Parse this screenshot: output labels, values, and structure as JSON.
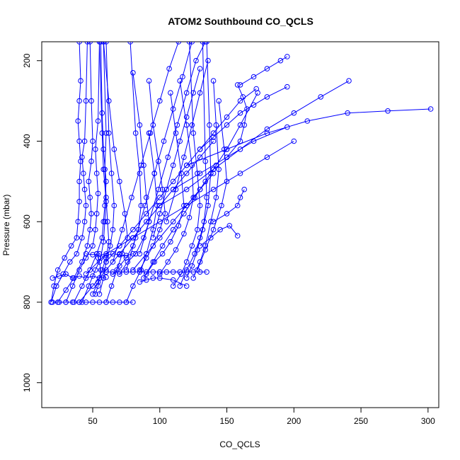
{
  "chart_data": {
    "type": "line",
    "title": "ATOM2 Southbound CO_QCLS",
    "xlabel": "CO_QCLS",
    "ylabel": "Pressure (mbar)",
    "xlim": [
      12,
      308
    ],
    "ylim": [
      1062,
      153
    ],
    "y_reversed": true,
    "x_ticks": [
      50,
      100,
      150,
      200,
      250,
      300
    ],
    "y_ticks": [
      200,
      400,
      600,
      800,
      1000
    ],
    "grid": false,
    "legend": "none",
    "line_color": "#0000ff",
    "marker": "open-circle",
    "series": [
      {
        "x": [
          19,
          21,
          24,
          29,
          34,
          38,
          39,
          40,
          40,
          41,
          40,
          39,
          40,
          41,
          40
        ],
        "y": [
          800,
          760,
          720,
          690,
          660,
          640,
          600,
          550,
          500,
          450,
          400,
          350,
          300,
          250,
          153
        ]
      },
      {
        "x": [
          19,
          23,
          28,
          33,
          38,
          42,
          44,
          45,
          44,
          43,
          42,
          44,
          45,
          46
        ],
        "y": [
          800,
          760,
          730,
          700,
          680,
          640,
          600,
          560,
          520,
          480,
          440,
          400,
          300,
          153
        ]
      },
      {
        "x": [
          24,
          30,
          36,
          42,
          46,
          48,
          49,
          48,
          47,
          49,
          50,
          49,
          48
        ],
        "y": [
          800,
          770,
          740,
          700,
          660,
          620,
          580,
          540,
          500,
          450,
          400,
          300,
          153
        ]
      },
      {
        "x": [
          30,
          35,
          40,
          45,
          50,
          52,
          53,
          54,
          53,
          52,
          54,
          55
        ],
        "y": [
          800,
          760,
          720,
          690,
          660,
          620,
          580,
          530,
          480,
          420,
          350,
          153
        ]
      },
      {
        "x": [
          36,
          42,
          48,
          53,
          57,
          58,
          59,
          60,
          58,
          57,
          56
        ],
        "y": [
          800,
          760,
          720,
          680,
          640,
          600,
          560,
          500,
          420,
          330,
          153
        ]
      },
      {
        "x": [
          42,
          47,
          52,
          56,
          58,
          59,
          60,
          58,
          57,
          55
        ],
        "y": [
          800,
          760,
          720,
          690,
          650,
          600,
          550,
          470,
          380,
          153
        ]
      },
      {
        "x": [
          50,
          54,
          57,
          60,
          62,
          61,
          60,
          59,
          60,
          58
        ],
        "y": [
          780,
          750,
          720,
          690,
          650,
          600,
          540,
          470,
          380,
          153
        ]
      },
      {
        "x": [
          55,
          58,
          60,
          63,
          65,
          66,
          64,
          62,
          60
        ],
        "y": [
          780,
          740,
          700,
          660,
          620,
          560,
          480,
          380,
          153
        ]
      },
      {
        "x": [
          60,
          64,
          68,
          72,
          76,
          74,
          70,
          66,
          62,
          58
        ],
        "y": [
          800,
          760,
          720,
          680,
          640,
          580,
          500,
          420,
          300,
          153
        ]
      },
      {
        "x": [
          65,
          70,
          75,
          80,
          84,
          86,
          85,
          82,
          78
        ],
        "y": [
          730,
          710,
          690,
          660,
          620,
          560,
          480,
          380,
          153
        ]
      },
      {
        "x": [
          70,
          76,
          82,
          88,
          92,
          90,
          88,
          85,
          80
        ],
        "y": [
          730,
          700,
          680,
          640,
          600,
          540,
          460,
          360,
          230
        ]
      },
      {
        "x": [
          75,
          80,
          86,
          90,
          95,
          98,
          96,
          92
        ],
        "y": [
          800,
          760,
          720,
          680,
          620,
          560,
          480,
          380
        ]
      },
      {
        "x": [
          85,
          90,
          95,
          100,
          104,
          102,
          99,
          95,
          92
        ],
        "y": [
          720,
          690,
          660,
          620,
          580,
          520,
          450,
          360,
          250
        ]
      },
      {
        "x": [
          90,
          96,
          102,
          108,
          114,
          118,
          116,
          112,
          108
        ],
        "y": [
          730,
          700,
          680,
          650,
          610,
          560,
          480,
          380,
          280
        ]
      },
      {
        "x": [
          100,
          106,
          112,
          118,
          122,
          125,
          124,
          120,
          115
        ],
        "y": [
          730,
          700,
          670,
          630,
          590,
          540,
          460,
          360,
          250
        ]
      },
      {
        "x": [
          110,
          116,
          120,
          124,
          128,
          130,
          128,
          125,
          122
        ],
        "y": [
          760,
          730,
          700,
          660,
          620,
          560,
          480,
          380,
          153
        ]
      },
      {
        "x": [
          115,
          120,
          126,
          130,
          133,
          135,
          134,
          132
        ],
        "y": [
          760,
          720,
          680,
          640,
          600,
          540,
          450,
          153
        ]
      },
      {
        "x": [
          120,
          124,
          128,
          132,
          136,
          138,
          137,
          135
        ],
        "y": [
          740,
          710,
          670,
          620,
          560,
          480,
          360,
          153
        ]
      },
      {
        "x": [
          125,
          130,
          134,
          138,
          142,
          144,
          142,
          140
        ],
        "y": [
          740,
          700,
          660,
          600,
          540,
          470,
          360,
          250
        ]
      },
      {
        "x": [
          128,
          134,
          140,
          146,
          150,
          148,
          144
        ],
        "y": [
          720,
          670,
          620,
          560,
          500,
          420,
          300
        ]
      },
      {
        "x": [
          100,
          120,
          140,
          160,
          180,
          200,
          220,
          241
        ],
        "y": [
          560,
          520,
          470,
          420,
          370,
          330,
          290,
          250
        ]
      },
      {
        "x": [
          120,
          150,
          180,
          210,
          240,
          270,
          302
        ],
        "y": [
          460,
          420,
          380,
          350,
          330,
          325,
          320
        ]
      },
      {
        "x": [
          110,
          130,
          150,
          170,
          195
        ],
        "y": [
          520,
          480,
          440,
          400,
          365
        ]
      },
      {
        "x": [
          130,
          140,
          150,
          160,
          170,
          180,
          195
        ],
        "y": [
          420,
          390,
          360,
          330,
          310,
          290,
          265
        ]
      },
      {
        "x": [
          120,
          130,
          140,
          150,
          160,
          173
        ],
        "y": [
          560,
          520,
          470,
          420,
          360,
          280
        ]
      },
      {
        "x": [
          140,
          150,
          158,
          160,
          163
        ],
        "y": [
          600,
          580,
          560,
          540,
          520
        ]
      },
      {
        "x": [
          130,
          138,
          145,
          152,
          158
        ],
        "y": [
          660,
          640,
          620,
          610,
          635
        ]
      },
      {
        "x": [
          150,
          160,
          163,
          165,
          162,
          158
        ],
        "y": [
          440,
          400,
          360,
          320,
          290,
          260
        ]
      },
      {
        "x": [
          160,
          170,
          180,
          190,
          195
        ],
        "y": [
          260,
          240,
          220,
          200,
          190
        ]
      },
      {
        "x": [
          45,
          60,
          80,
          100,
          120,
          140,
          160,
          180,
          200
        ],
        "y": [
          730,
          680,
          640,
          600,
          560,
          520,
          480,
          440,
          400
        ]
      },
      {
        "x": [
          40,
          50,
          60,
          70,
          80,
          90,
          100,
          110,
          120,
          130,
          140
        ],
        "y": [
          800,
          760,
          720,
          680,
          640,
          600,
          560,
          520,
          480,
          440,
          400
        ]
      },
      {
        "x": [
          60,
          70,
          80,
          90,
          100,
          110,
          120,
          130,
          140,
          150,
          160,
          172
        ],
        "y": [
          700,
          660,
          620,
          580,
          540,
          500,
          460,
          420,
          380,
          340,
          300,
          270
        ]
      },
      {
        "x": [
          80,
          90,
          100,
          110,
          120,
          130,
          140
        ],
        "y": [
          720,
          680,
          640,
          600,
          560,
          520,
          480
        ]
      },
      {
        "x": [
          95,
          100,
          105,
          110,
          115,
          120,
          125,
          130
        ],
        "y": [
          640,
          580,
          520,
          460,
          400,
          340,
          280,
          220
        ]
      },
      {
        "x": [
          105,
          112,
          118,
          124,
          130,
          136
        ],
        "y": [
          600,
          520,
          440,
          360,
          280,
          200
        ]
      },
      {
        "x": [
          85,
          92,
          99,
          106,
          113,
          120,
          127,
          134
        ],
        "y": [
          680,
          600,
          520,
          440,
          360,
          280,
          200,
          153
        ]
      },
      {
        "x": [
          75,
          82,
          89,
          96,
          103,
          110,
          117,
          124
        ],
        "y": [
          720,
          640,
          560,
          480,
          400,
          320,
          240,
          153
        ]
      },
      {
        "x": [
          65,
          72,
          79,
          86,
          93,
          100,
          107,
          114
        ],
        "y": [
          700,
          620,
          540,
          460,
          380,
          300,
          220,
          153
        ]
      },
      {
        "x": [
          88,
          95,
          102,
          110,
          118,
          126,
          134,
          142
        ],
        "y": [
          740,
          700,
          660,
          620,
          580,
          540,
          500,
          460
        ]
      },
      {
        "x": [
          20,
          25,
          30,
          35,
          40,
          45,
          50,
          55,
          60
        ],
        "y": [
          740,
          735,
          730,
          740,
          735,
          740,
          735,
          740,
          738
        ]
      },
      {
        "x": [
          45,
          50,
          55,
          60,
          65,
          70,
          75,
          80
        ],
        "y": [
          680,
          682,
          680,
          684,
          680,
          682,
          684,
          680
        ]
      },
      {
        "x": [
          20,
          25,
          30,
          35,
          40,
          45,
          50,
          55,
          60,
          65,
          70,
          75,
          80
        ],
        "y": [
          800,
          800,
          800,
          800,
          800,
          800,
          800,
          800,
          800,
          800,
          800,
          800,
          800
        ]
      },
      {
        "x": [
          60,
          65,
          70,
          75,
          80,
          85,
          90,
          95,
          100
        ],
        "y": [
          725,
          725,
          725,
          725,
          725,
          725,
          725,
          725,
          725
        ]
      },
      {
        "x": [
          100,
          105,
          110,
          115,
          120,
          125,
          130,
          135
        ],
        "y": [
          725,
          725,
          725,
          725,
          725,
          725,
          725,
          725
        ]
      },
      {
        "x": [
          85,
          90,
          95,
          100,
          110,
          120
        ],
        "y": [
          750,
          745,
          740,
          740,
          745,
          760
        ]
      },
      {
        "x": [
          52,
          54,
          55,
          56,
          55,
          54,
          53
        ],
        "y": [
          780,
          760,
          740,
          720,
          700,
          690,
          680
        ]
      }
    ]
  }
}
